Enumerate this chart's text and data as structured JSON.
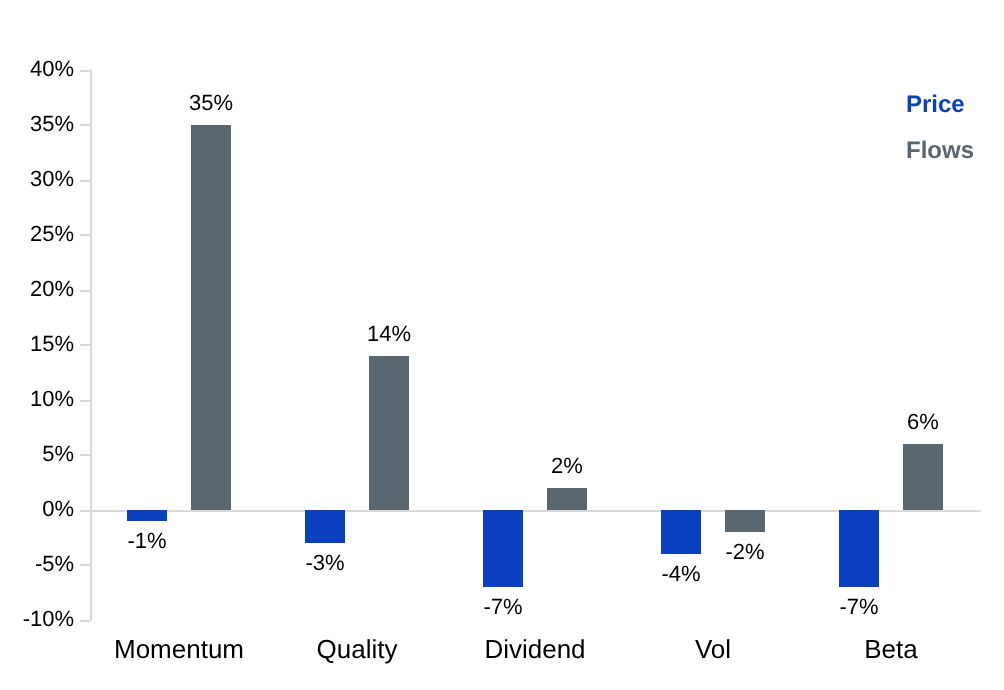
{
  "chart_data": {
    "type": "bar",
    "categories": [
      "Momentum",
      "Quality",
      "Dividend",
      "Vol",
      "Beta"
    ],
    "series": [
      {
        "name": "Price",
        "color": "#0b41c0",
        "values": [
          -1,
          -3,
          -7,
          -4,
          -7
        ],
        "value_labels": [
          "-1%",
          "-3%",
          "-7%",
          "-4%",
          "-7%"
        ]
      },
      {
        "name": "Flows",
        "color": "#5b6770",
        "values": [
          35,
          14,
          2,
          -2,
          6
        ],
        "value_labels": [
          "35%",
          "14%",
          "2%",
          "-2%",
          "6%"
        ]
      }
    ],
    "ylim": [
      -10,
      40
    ],
    "yticks": [
      {
        "value": -10,
        "label": "-10%"
      },
      {
        "value": -5,
        "label": "-5%"
      },
      {
        "value": 0,
        "label": "0%"
      },
      {
        "value": 5,
        "label": "5%"
      },
      {
        "value": 10,
        "label": "10%"
      },
      {
        "value": 15,
        "label": "15%"
      },
      {
        "value": 20,
        "label": "20%"
      },
      {
        "value": 25,
        "label": "25%"
      },
      {
        "value": 30,
        "label": "30%"
      },
      {
        "value": 35,
        "label": "35%"
      },
      {
        "value": 40,
        "label": "40%"
      }
    ],
    "legend": "top right"
  }
}
